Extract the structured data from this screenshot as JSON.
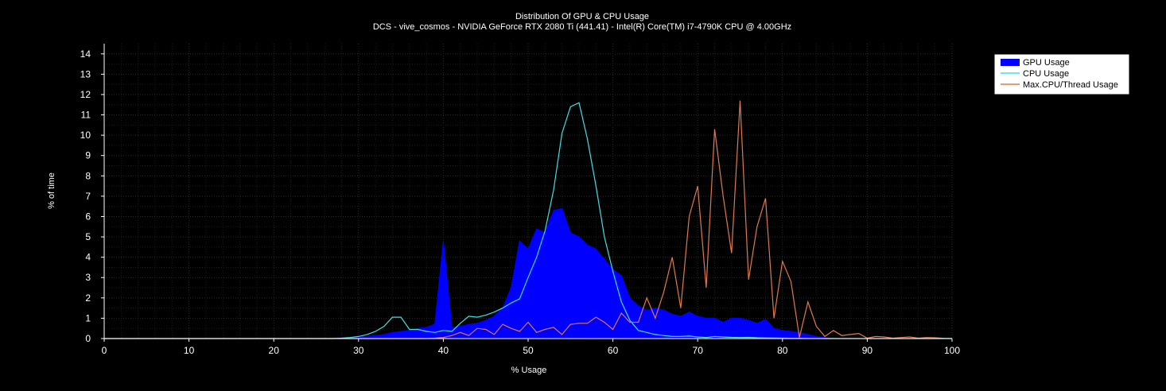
{
  "chart_data": {
    "type": "area",
    "title": "Distribution Of GPU & CPU Usage",
    "subtitle": "DCS - vive_cosmos - NVIDIA GeForce RTX 2080 Ti (441.41) - Intel(R) Core(TM) i7-4790K CPU @ 4.00GHz",
    "xlabel": "% Usage",
    "ylabel": "% of time",
    "xlim": [
      0,
      100
    ],
    "ylim": [
      0,
      14.5
    ],
    "xticks": [
      0,
      10,
      20,
      30,
      40,
      50,
      60,
      70,
      80,
      90,
      100
    ],
    "yticks": [
      0,
      1,
      2,
      3,
      4,
      5,
      6,
      7,
      8,
      9,
      10,
      11,
      12,
      13,
      14
    ],
    "grid": true,
    "legend_position": "top-right",
    "series": [
      {
        "name": "GPU Usage",
        "kind": "area",
        "color": "#0000ff",
        "x": [
          0,
          25,
          30,
          31,
          32,
          33,
          34,
          35,
          36,
          37,
          38,
          39,
          40,
          41,
          42,
          43,
          44,
          45,
          46,
          47,
          48,
          49,
          50,
          51,
          52,
          53,
          54,
          55,
          56,
          57,
          58,
          59,
          60,
          61,
          62,
          63,
          64,
          65,
          66,
          67,
          68,
          69,
          70,
          71,
          72,
          73,
          74,
          75,
          76,
          77,
          78,
          79,
          80,
          81,
          82,
          83,
          84,
          85,
          86,
          100
        ],
        "y": [
          0,
          0,
          0.05,
          0.1,
          0.15,
          0.2,
          0.3,
          0.35,
          0.4,
          0.5,
          0.55,
          0.7,
          4.8,
          0.55,
          0.6,
          0.7,
          0.75,
          0.9,
          1.1,
          1.5,
          2.5,
          4.8,
          4.4,
          5.4,
          5.2,
          6.3,
          6.4,
          5.2,
          5.0,
          4.6,
          4.4,
          3.9,
          3.4,
          3.1,
          2.0,
          1.6,
          1.4,
          1.5,
          1.4,
          1.2,
          1.1,
          1.3,
          1.1,
          1.0,
          1.0,
          0.8,
          1.0,
          1.0,
          0.9,
          0.75,
          0.95,
          0.5,
          0.4,
          0.35,
          0.3,
          0.2,
          0.1,
          0.05,
          0,
          0
        ]
      },
      {
        "name": "CPU Usage",
        "kind": "line",
        "color": "#40e0e0",
        "x": [
          0,
          27,
          28,
          29,
          30,
          31,
          32,
          33,
          34,
          35,
          36,
          37,
          38,
          39,
          40,
          41,
          42,
          43,
          44,
          45,
          46,
          47,
          48,
          49,
          50,
          51,
          52,
          53,
          54,
          55,
          56,
          57,
          58,
          59,
          60,
          61,
          62,
          63,
          64,
          65,
          66,
          67,
          68,
          69,
          70,
          71,
          72,
          73,
          74,
          75,
          76,
          77,
          78,
          80,
          85,
          100
        ],
        "y": [
          0,
          0,
          0.02,
          0.05,
          0.1,
          0.2,
          0.35,
          0.6,
          1.05,
          1.05,
          0.45,
          0.45,
          0.35,
          0.3,
          0.4,
          0.35,
          0.75,
          1.1,
          1.05,
          1.15,
          1.3,
          1.5,
          1.75,
          1.95,
          3.0,
          4.0,
          5.3,
          7.3,
          10.1,
          11.4,
          11.6,
          9.8,
          7.5,
          5.0,
          3.3,
          1.8,
          0.9,
          0.4,
          0.3,
          0.2,
          0.15,
          0.1,
          0.1,
          0.12,
          0.08,
          0.05,
          0.1,
          0.08,
          0.06,
          0.05,
          0.06,
          0.04,
          0.03,
          0.02,
          0,
          0
        ]
      },
      {
        "name": "Max.CPU/Thread Usage",
        "kind": "line",
        "color": "#e07850",
        "x": [
          0,
          38,
          39,
          40,
          41,
          42,
          43,
          44,
          45,
          46,
          47,
          48,
          49,
          50,
          51,
          52,
          53,
          54,
          55,
          56,
          57,
          58,
          59,
          60,
          61,
          62,
          63,
          64,
          65,
          66,
          67,
          68,
          69,
          70,
          71,
          72,
          73,
          74,
          75,
          76,
          77,
          78,
          79,
          80,
          81,
          82,
          83,
          84,
          85,
          86,
          87,
          88,
          89,
          90,
          91,
          92,
          93,
          94,
          95,
          96,
          97,
          98,
          99,
          100
        ],
        "y": [
          0,
          0,
          0.02,
          0.05,
          0.15,
          0.3,
          0.15,
          0.5,
          0.45,
          0.2,
          0.7,
          0.5,
          0.35,
          0.8,
          0.3,
          0.45,
          0.55,
          0.2,
          0.7,
          0.75,
          0.75,
          1.05,
          0.8,
          0.45,
          1.25,
          0.8,
          0.8,
          2.0,
          1.0,
          2.3,
          4.0,
          1.5,
          6.0,
          7.5,
          2.5,
          10.3,
          7.0,
          4.2,
          11.7,
          2.9,
          5.5,
          6.9,
          1.0,
          3.8,
          2.8,
          0.05,
          1.8,
          0.6,
          0.1,
          0.4,
          0.15,
          0.2,
          0.25,
          0.02,
          0.1,
          0.08,
          0.02,
          0.05,
          0.08,
          0.02,
          0.05,
          0.04,
          0.01,
          0
        ]
      }
    ]
  }
}
